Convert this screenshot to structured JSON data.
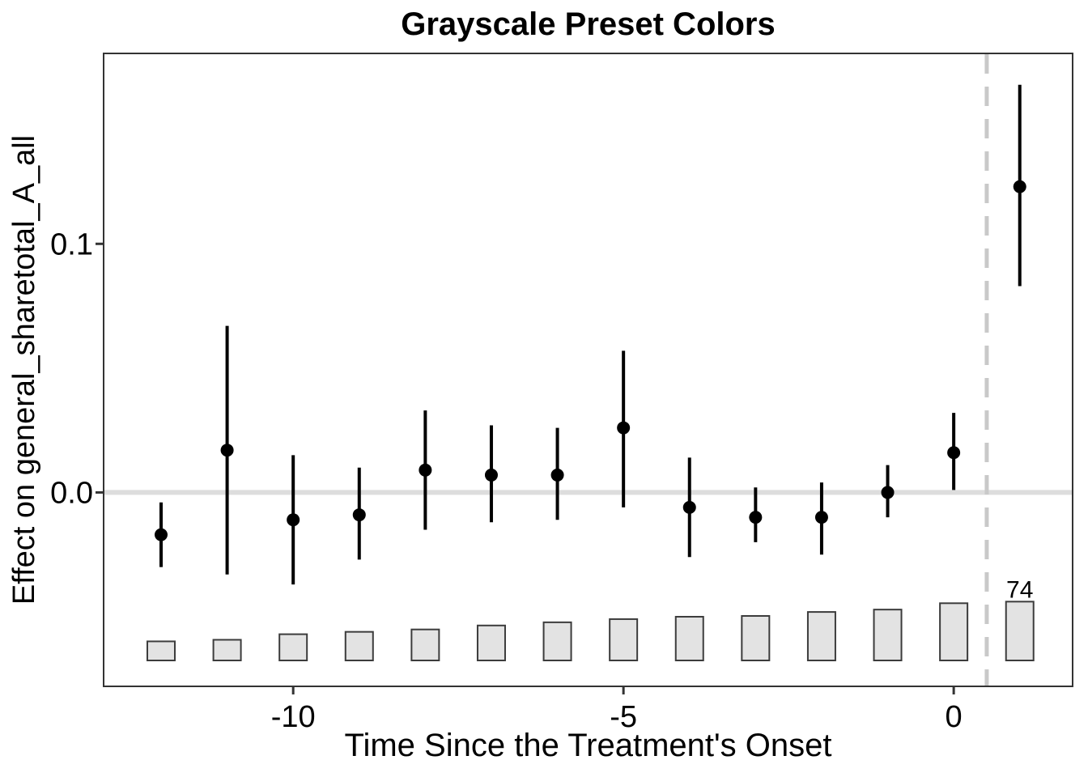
{
  "chart_data": {
    "type": "scatter",
    "subtype": "event-study-pointrange-with-observation-histogram",
    "title": "Grayscale Preset Colors",
    "xlabel": "Time Since the Treatment's Onset",
    "ylabel": "Effect on general_sharetotal_A_all",
    "xlim": [
      -12.87,
      1.8
    ],
    "ylim": [
      -0.078,
      0.1766
    ],
    "grid": "off",
    "legend": "none",
    "x_ticks": [
      {
        "value": -10,
        "label": "-10"
      },
      {
        "value": -5,
        "label": "-5"
      },
      {
        "value": 0,
        "label": "0"
      }
    ],
    "y_ticks": [
      {
        "value": 0.0,
        "label": "0.0"
      },
      {
        "value": 0.1,
        "label": "0.1"
      }
    ],
    "zero_line_y": 0.0,
    "dashed_vline_x": 0.5,
    "points": [
      {
        "t": -12,
        "estimate": -0.017,
        "ci_low": -0.03,
        "ci_high": -0.004,
        "n_obs": 24,
        "n_label": ""
      },
      {
        "t": -11,
        "estimate": 0.017,
        "ci_low": -0.033,
        "ci_high": 0.067,
        "n_obs": 26,
        "n_label": ""
      },
      {
        "t": -10,
        "estimate": -0.011,
        "ci_low": -0.037,
        "ci_high": 0.015,
        "n_obs": 33,
        "n_label": ""
      },
      {
        "t": -9,
        "estimate": -0.009,
        "ci_low": -0.027,
        "ci_high": 0.01,
        "n_obs": 36,
        "n_label": ""
      },
      {
        "t": -8,
        "estimate": 0.009,
        "ci_low": -0.015,
        "ci_high": 0.033,
        "n_obs": 39,
        "n_label": ""
      },
      {
        "t": -7,
        "estimate": 0.007,
        "ci_low": -0.012,
        "ci_high": 0.027,
        "n_obs": 44,
        "n_label": ""
      },
      {
        "t": -6,
        "estimate": 0.007,
        "ci_low": -0.011,
        "ci_high": 0.026,
        "n_obs": 48,
        "n_label": ""
      },
      {
        "t": -5,
        "estimate": 0.026,
        "ci_low": -0.006,
        "ci_high": 0.057,
        "n_obs": 52,
        "n_label": ""
      },
      {
        "t": -4,
        "estimate": -0.006,
        "ci_low": -0.026,
        "ci_high": 0.014,
        "n_obs": 55,
        "n_label": ""
      },
      {
        "t": -3,
        "estimate": -0.01,
        "ci_low": -0.02,
        "ci_high": 0.002,
        "n_obs": 56,
        "n_label": ""
      },
      {
        "t": -2,
        "estimate": -0.01,
        "ci_low": -0.025,
        "ci_high": 0.004,
        "n_obs": 61,
        "n_label": ""
      },
      {
        "t": -1,
        "estimate": 0.0,
        "ci_low": -0.01,
        "ci_high": 0.011,
        "n_obs": 64,
        "n_label": ""
      },
      {
        "t": 0,
        "estimate": 0.016,
        "ci_low": 0.001,
        "ci_high": 0.032,
        "n_obs": 72,
        "n_label": ""
      },
      {
        "t": 1,
        "estimate": 0.123,
        "ci_low": 0.083,
        "ci_high": 0.164,
        "n_obs": 74,
        "n_label": "74"
      }
    ],
    "colors": {
      "point": "#000000",
      "ci_bar": "#000000",
      "zero_line": "#DDDDDD",
      "dashed_vline": "#C9C9C9",
      "bar_fill": "#E3E3E3",
      "bar_stroke": "#3C3C3C",
      "axis": "#333333",
      "text": "#000000"
    }
  }
}
